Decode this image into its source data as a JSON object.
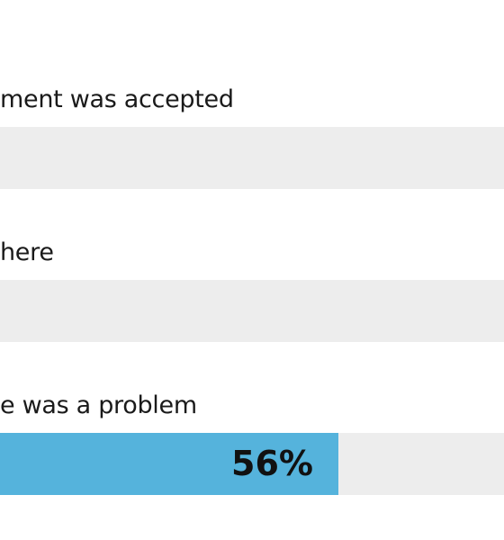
{
  "chart_data": {
    "type": "bar",
    "orientation": "horizontal",
    "categories": [
      "ment was accepted",
      "here",
      "e was a problem"
    ],
    "values": [
      null,
      null,
      56
    ],
    "value_labels": [
      "",
      "",
      "56%"
    ],
    "unit": "%",
    "xlim": [
      0,
      100
    ],
    "grid": false,
    "legend": "none"
  },
  "colors": {
    "bar": "#55b3dc",
    "track": "#ededed",
    "text": "#1a1a1a"
  }
}
